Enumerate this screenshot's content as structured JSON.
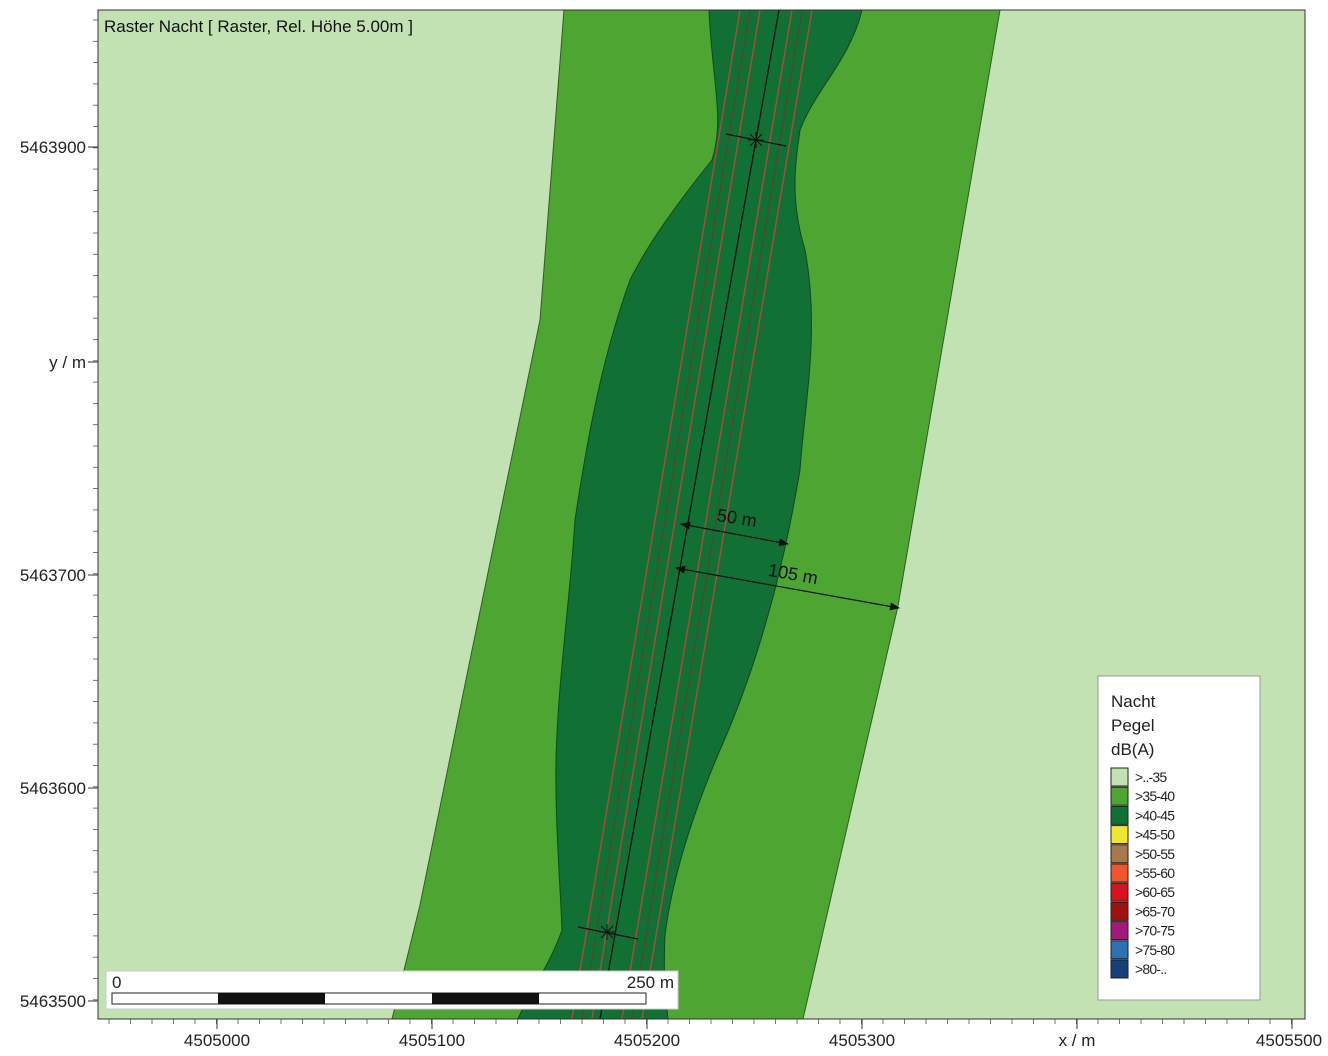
{
  "map": {
    "title": "Raster Nacht  [ Raster, Rel. Höhe  5.00m ]",
    "y_axis": {
      "label": "y / m",
      "ticks": [
        "5463900",
        "5463700",
        "5463600",
        "5463500"
      ]
    },
    "x_axis": {
      "label": "x / m",
      "ticks": [
        "4505000",
        "4505100",
        "4505200",
        "4505300",
        "4505500"
      ]
    },
    "annotations": {
      "dist1": "50 m",
      "dist2": "105 m"
    },
    "scalebar": {
      "start": "0",
      "end": "250 m"
    },
    "legend": {
      "title_lines": [
        "Nacht",
        "Pegel",
        "dB(A)"
      ],
      "entries": [
        {
          "label": ">..-35",
          "color": "#c2e2b4"
        },
        {
          "label": ">35-40",
          "color": "#4ea632"
        },
        {
          "label": ">40-45",
          "color": "#117034"
        },
        {
          "label": ">45-50",
          "color": "#f2e52e"
        },
        {
          "label": ">50-55",
          "color": "#a8794f"
        },
        {
          "label": ">55-60",
          "color": "#f0552b"
        },
        {
          "label": ">60-65",
          "color": "#d4141c"
        },
        {
          "label": ">65-70",
          "color": "#9c1212"
        },
        {
          "label": ">70-75",
          "color": "#a11a7a"
        },
        {
          "label": ">75-80",
          "color": "#2f6fb6"
        },
        {
          "label": ">80-..",
          "color": "#173f7a"
        }
      ]
    },
    "colors": {
      "zone_low": "#c2e2b4",
      "zone_mid": "#4ea632",
      "zone_high": "#117034",
      "road_edge": "#b04a3e"
    }
  }
}
